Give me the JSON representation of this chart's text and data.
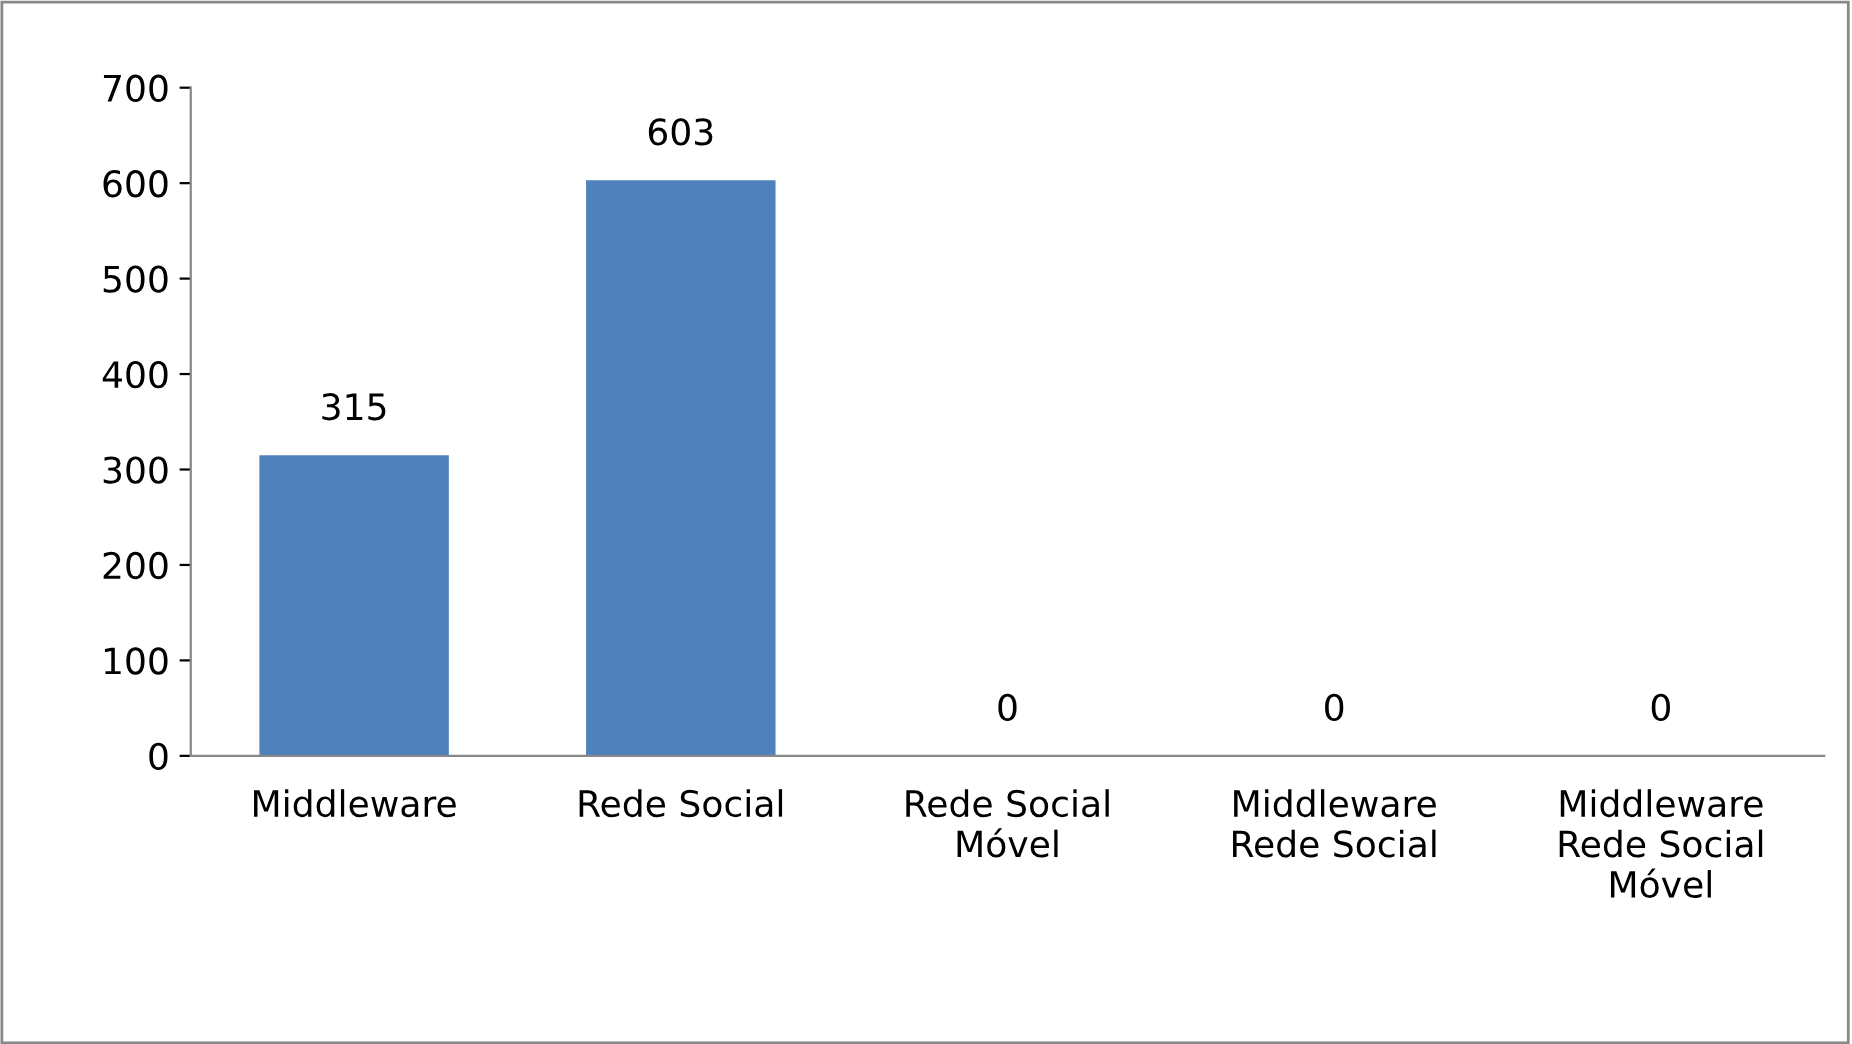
{
  "chart_data": {
    "type": "bar",
    "categories": [
      "Middleware",
      "Rede Social",
      "Rede Social\nMóvel",
      "Middleware\nRede Social",
      "Middleware\nRede Social\nMóvel"
    ],
    "values": [
      315,
      603,
      0,
      0,
      0
    ],
    "color": "#4f81bd",
    "ylim": [
      0,
      700
    ],
    "yticks": [
      0,
      100,
      200,
      300,
      400,
      500,
      600,
      700
    ],
    "data_labels": true,
    "grid": false,
    "legend": false
  }
}
